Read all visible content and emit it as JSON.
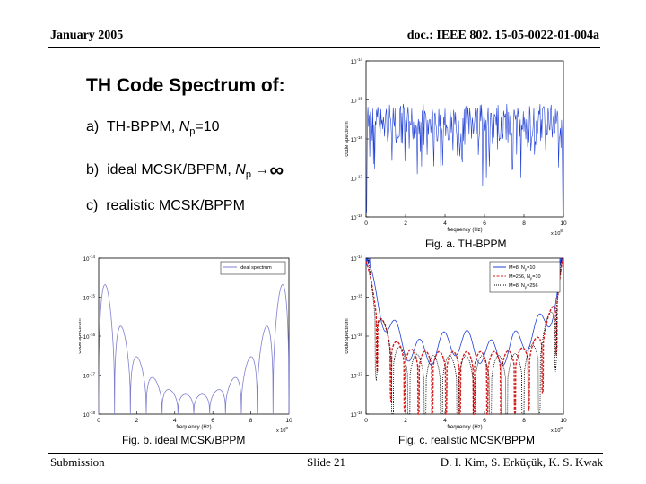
{
  "header": {
    "date": "January 2005",
    "doc_id": "doc.: IEEE 802. 15-05-0022-01-004a"
  },
  "slide": {
    "title": "TH Code Spectrum of:",
    "items": [
      {
        "prefix": "a)",
        "text": "TH-BPPM, ",
        "np_label": "N",
        "np_sub": "p",
        "suffix": "=10"
      },
      {
        "prefix": "b)",
        "text": "ideal MCSK/BPPM, ",
        "np_label": "N",
        "np_sub": "p",
        "arrow": "→",
        "inf": "∞"
      },
      {
        "prefix": "c)",
        "text": "realistic MCSK/BPPM"
      }
    ]
  },
  "captions": {
    "fig_a": "Fig. a. TH-BPPM",
    "fig_b": "Fig. b. ideal MCSK/BPPM",
    "fig_c": "Fig. c. realistic MCSK/BPPM"
  },
  "footer": {
    "left": "Submission",
    "center": "Slide 21",
    "right": "D. I. Kim, S. Erküçük, K. S. Kwak"
  },
  "chart_data": [
    {
      "id": "fig_a",
      "type": "line",
      "xlabel": "frequency (Hz)",
      "ylabel": "code spectrum",
      "x_multiplier_label": "x 10",
      "x_multiplier_exp": "8",
      "xticks": [
        "0",
        "2",
        "4",
        "6",
        "8",
        "10"
      ],
      "xlim": [
        0,
        10
      ],
      "ylim_log10": [
        -18,
        -14
      ],
      "yticks": [
        "10",
        "10",
        "10",
        "10",
        "10"
      ],
      "ytick_exps": [
        "-14",
        "-15",
        "-16",
        "-17",
        "-18"
      ],
      "series": [
        {
          "color": "#1f3fd6",
          "pattern": "noisy",
          "level_log10": -15.1,
          "spread": 1.0
        }
      ]
    },
    {
      "id": "fig_b",
      "type": "line",
      "xlabel": "frequency (Hz)",
      "ylabel": "code spectrum",
      "x_multiplier_label": "x 10",
      "x_multiplier_exp": "8",
      "xticks": [
        "0",
        "2",
        "4",
        "6",
        "8",
        "10"
      ],
      "xlim": [
        0,
        10
      ],
      "ylim_log10": [
        -18,
        -14
      ],
      "yticks": [
        "10",
        "10",
        "10",
        "10",
        "10"
      ],
      "ytick_exps": [
        "-14",
        "-15",
        "-16",
        "-17",
        "-18"
      ],
      "legend": [
        {
          "name": "ideal spectrum",
          "color": "#7f7fd0",
          "style": "solid"
        }
      ],
      "series": [
        {
          "name": "ideal spectrum",
          "color": "#7f7fd0",
          "pattern": "bowl"
        }
      ]
    },
    {
      "id": "fig_c",
      "type": "line",
      "xlabel": "frequency (Hz)",
      "ylabel": "code spectrum",
      "x_multiplier_label": "x 10",
      "x_multiplier_exp": "8",
      "xticks": [
        "0",
        "2",
        "4",
        "6",
        "8",
        "10"
      ],
      "xlim": [
        0,
        10
      ],
      "ylim_log10": [
        -18,
        -14
      ],
      "yticks": [
        "10",
        "10",
        "10",
        "10",
        "10"
      ],
      "ytick_exps": [
        "-14",
        "-15",
        "-16",
        "-17",
        "-18"
      ],
      "legend": [
        {
          "name": "M=8, N",
          "sub": "p",
          "tail": "=10",
          "color": "#1f3fd6",
          "style": "solid"
        },
        {
          "name": "M=256, N",
          "sub": "p",
          "tail": "=10",
          "color": "#d62020",
          "style": "dashed"
        },
        {
          "name": "M=8, N",
          "sub": "p",
          "tail": "=256",
          "color": "#000000",
          "style": "dotted"
        }
      ],
      "series": [
        {
          "name": "M=8, Np=10",
          "color": "#1f3fd6",
          "pattern": "wavy",
          "level_log10": -16.3
        },
        {
          "name": "M=256, Np=10",
          "color": "#d62020",
          "pattern": "dips",
          "level_log10": -16.7
        },
        {
          "name": "M=8, Np=256",
          "color": "#000000",
          "pattern": "deepdips",
          "level_log10": -17.0
        }
      ]
    }
  ]
}
